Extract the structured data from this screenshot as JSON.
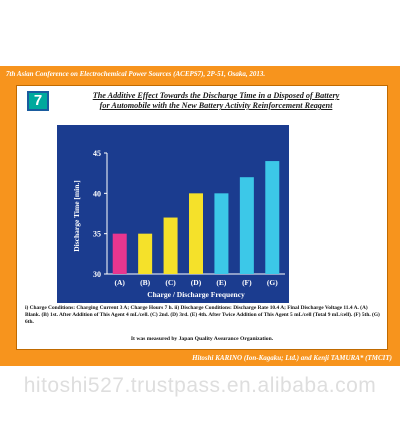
{
  "conference": "7th Asian Conference on Electrochemical Power Sources (ACEPS7), 2P-51, Osaka, 2013.",
  "badge": "7",
  "title_line1": "The Additive Effect Towards the Discharge Time in a Disposed of Battery",
  "title_line2": "for Automobile with the New Battery Activity Reinforcement Reagent",
  "notes": "i) Charge Conditions: Charging Current 3 A; Charge Hours 7 h. ii) Discharge Conditions: Discharge Rate 10.4 A; Final Discharge Voltage 11.4 A. (A) Blank. (B) 1st. After Addition of This Agent 4 mL/cell. (C) 2nd. (D) 3rd. (E) 4th. After Twice Addition of This Agent 5 mL/cell (Total 9 mL/cell). (F) 5th. (G) 6th.",
  "measured_by": "It was measured by Japan Quality Assurance Organization.",
  "authors": "Hitoshi KARINO (Ion-Kagaku; Ltd.) and Kenji TAMURA* (TMCIT)",
  "watermark": "hitoshi527.trustpass.en.alibaba.com",
  "colors": {
    "orange_frame": "#f7941d",
    "plot_background": "#1b3c8f",
    "badge": "#00a99d"
  },
  "chart_data": {
    "type": "bar",
    "categories": [
      "(A)",
      "(B)",
      "(C)",
      "(D)",
      "(E)",
      "(F)",
      "(G)"
    ],
    "values": [
      35,
      35,
      37,
      40,
      40,
      42,
      44
    ],
    "bar_colors": [
      "#e8368f",
      "#f5e12a",
      "#f5e12a",
      "#f5e12a",
      "#3cc8e8",
      "#3cc8e8",
      "#3cc8e8"
    ],
    "xlabel": "Charge / Discharge Frequency",
    "ylabel": "Discharge Time [min.]",
    "ylim": [
      30,
      45
    ],
    "yticks": [
      30,
      35,
      40,
      45
    ],
    "grid": false
  }
}
